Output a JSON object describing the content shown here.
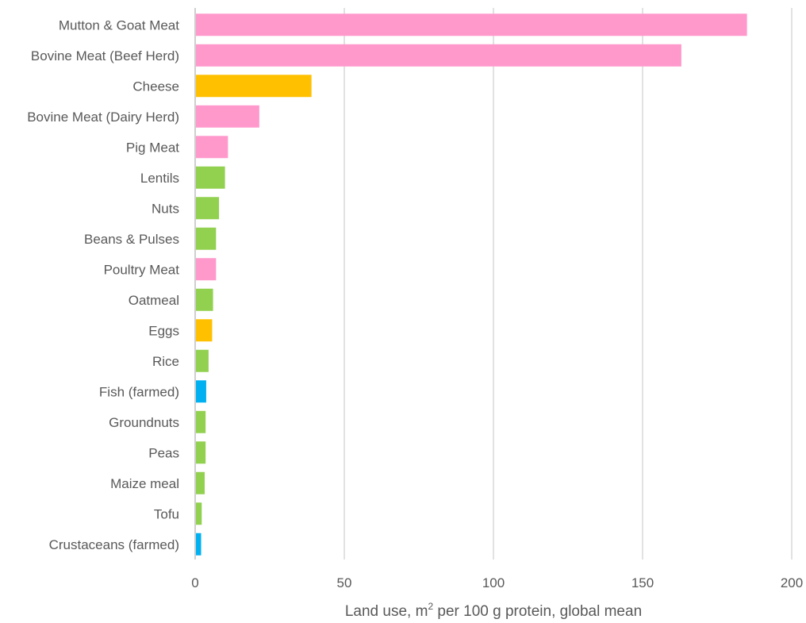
{
  "chart_data": {
    "type": "bar",
    "orientation": "horizontal",
    "title": "",
    "xlabel_main": "Land use, m",
    "xlabel_sup": "2",
    "xlabel_rest": " per 100 g protein, global mean",
    "ylabel": "",
    "xlim": [
      0,
      200
    ],
    "xticks": [
      0,
      50,
      100,
      150,
      200
    ],
    "grid": "vertical",
    "legend": "none",
    "categories": [
      "Mutton & Goat Meat",
      "Bovine Meat (Beef Herd)",
      "Cheese",
      "Bovine Meat (Dairy Herd)",
      "Pig Meat",
      "Lentils",
      "Nuts",
      "Beans & Pulses",
      "Poultry Meat",
      "Oatmeal",
      "Eggs",
      "Rice",
      "Fish (farmed)",
      "Groundnuts",
      "Peas",
      "Maize meal",
      "Tofu",
      "Crustaceans (farmed)"
    ],
    "values": [
      185,
      163,
      39,
      21.5,
      11,
      10,
      8,
      7,
      7,
      6,
      5.7,
      4.5,
      3.7,
      3.5,
      3.5,
      3.2,
      2.2,
      2
    ],
    "bar_groups": [
      "meat",
      "meat",
      "dairy",
      "meat",
      "meat",
      "plant",
      "plant",
      "plant",
      "meat",
      "plant",
      "dairy",
      "plant",
      "aquatic",
      "plant",
      "plant",
      "plant",
      "plant",
      "aquatic"
    ],
    "colors": {
      "meat": "#ff99cc",
      "dairy": "#ffc000",
      "plant": "#92d050",
      "aquatic": "#00b0f0",
      "grid": "#d9d9d9",
      "axis": "#bfbfbf",
      "text": "#595959"
    }
  }
}
